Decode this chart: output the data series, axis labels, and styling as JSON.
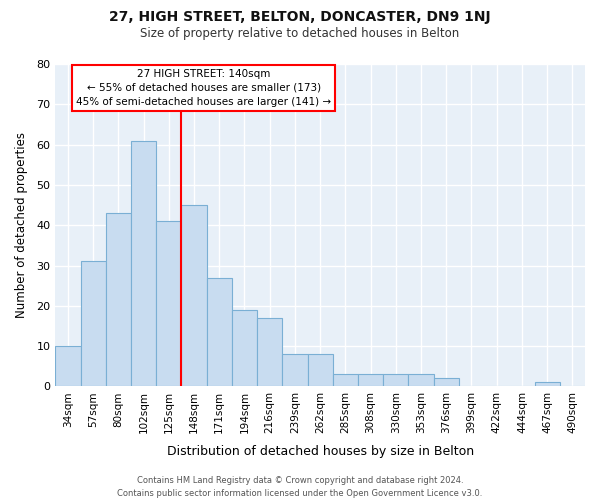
{
  "title": "27, HIGH STREET, BELTON, DONCASTER, DN9 1NJ",
  "subtitle": "Size of property relative to detached houses in Belton",
  "xlabel": "Distribution of detached houses by size in Belton",
  "ylabel": "Number of detached properties",
  "categories": [
    "34sqm",
    "57sqm",
    "80sqm",
    "102sqm",
    "125sqm",
    "148sqm",
    "171sqm",
    "194sqm",
    "216sqm",
    "239sqm",
    "262sqm",
    "285sqm",
    "308sqm",
    "330sqm",
    "353sqm",
    "376sqm",
    "399sqm",
    "422sqm",
    "444sqm",
    "467sqm",
    "490sqm"
  ],
  "values": [
    10,
    31,
    43,
    61,
    41,
    45,
    27,
    19,
    17,
    8,
    8,
    3,
    3,
    3,
    3,
    2,
    0,
    0,
    0,
    1,
    0
  ],
  "bar_color": "#c8dcf0",
  "bar_edge_color": "#7aafd4",
  "background_color": "#ffffff",
  "plot_bg_color": "#e8f0f8",
  "grid_color": "#ffffff",
  "property_label": "27 HIGH STREET: 140sqm",
  "annotation_line1": "← 55% of detached houses are smaller (173)",
  "annotation_line2": "45% of semi-detached houses are larger (141) →",
  "red_line_x": 4.5,
  "ylim": [
    0,
    80
  ],
  "yticks": [
    0,
    10,
    20,
    30,
    40,
    50,
    60,
    70,
    80
  ],
  "footer_line1": "Contains HM Land Registry data © Crown copyright and database right 2024.",
  "footer_line2": "Contains public sector information licensed under the Open Government Licence v3.0."
}
